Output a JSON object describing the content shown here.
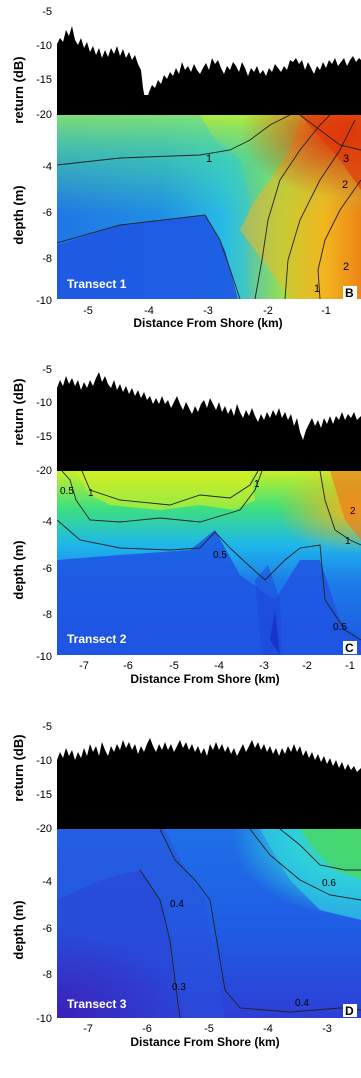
{
  "chart_data": [
    {
      "type": "heatmap",
      "panel_letter": "B",
      "transect_label": "Transect 1",
      "return_axis": {
        "label": "return (dB)",
        "ticks": [
          "-5",
          "-10",
          "-15",
          "-20"
        ],
        "ylim": [
          -20,
          -5
        ]
      },
      "depth_axis": {
        "label": "depth (m)",
        "ticks": [
          "-4",
          "-6",
          "-8",
          "-10"
        ],
        "ylim": [
          -10,
          -2
        ]
      },
      "x_axis": {
        "label": "Distance From Shore (km)",
        "ticks": [
          "-5",
          "-4",
          "-3",
          "-2",
          "-1"
        ],
        "xlim": [
          -5.5,
          -0.5
        ]
      },
      "contour_labels": [
        "1",
        "2",
        "3",
        "1",
        "2",
        "1"
      ],
      "colors": {
        "low": "#1e3ee0",
        "mid": "#39d9e6",
        "high": "#e42e0a"
      }
    },
    {
      "type": "heatmap",
      "panel_letter": "C",
      "transect_label": "Transect 2",
      "return_axis": {
        "label": "return (dB)",
        "ticks": [
          "-5",
          "-10",
          "-15",
          "-20"
        ],
        "ylim": [
          -20,
          -5
        ]
      },
      "depth_axis": {
        "label": "depth (m)",
        "ticks": [
          "-4",
          "-6",
          "-8",
          "-10"
        ],
        "ylim": [
          -10,
          -2
        ]
      },
      "x_axis": {
        "label": "Distance From Shore (km)",
        "ticks": [
          "-7",
          "-6",
          "-5",
          "-4",
          "-3",
          "-2",
          "-1"
        ],
        "xlim": [
          -7.5,
          -0.8
        ]
      },
      "contour_labels": [
        "0.5",
        "1",
        "1",
        "2",
        "0.5",
        "0.5",
        "1"
      ],
      "colors": {
        "low": "#1e3ee0",
        "mid": "#39d9e6",
        "high": "#e6f10a"
      }
    },
    {
      "type": "heatmap",
      "panel_letter": "D",
      "transect_label": "Transect 3",
      "return_axis": {
        "label": "return (dB)",
        "ticks": [
          "-5",
          "-10",
          "-15",
          "-20"
        ],
        "ylim": [
          -20,
          -5
        ]
      },
      "depth_axis": {
        "label": "depth (m)",
        "ticks": [
          "-4",
          "-6",
          "-8",
          "-10"
        ],
        "ylim": [
          -10,
          -2
        ]
      },
      "x_axis": {
        "label": "Distance From Shore (km)",
        "ticks": [
          "-7",
          "-6",
          "-5",
          "-4",
          "-3"
        ],
        "xlim": [
          -7.5,
          -2.4
        ]
      },
      "contour_labels": [
        "0.4",
        "0.6",
        "0.3",
        "0.4"
      ],
      "colors": {
        "low": "#3a2bc8",
        "mid": "#1e78ee",
        "high": "#35d07a"
      }
    }
  ]
}
